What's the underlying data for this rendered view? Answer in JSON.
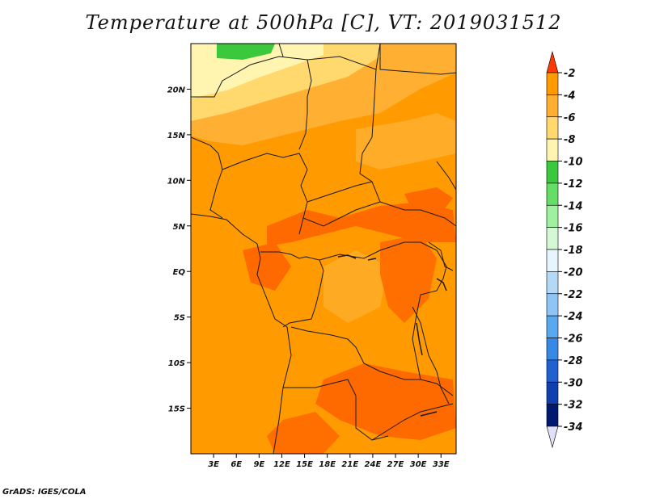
{
  "title": "Temperature at 500hPa [C], VT: 2019031512",
  "credit": "GrADS: IGES/COLA",
  "map": {
    "lon_range": [
      0,
      35
    ],
    "lat_range": [
      -20,
      25
    ],
    "lon_ticks": [
      "3E",
      "6E",
      "9E",
      "12E",
      "15E",
      "18E",
      "21E",
      "24E",
      "27E",
      "30E",
      "33E"
    ],
    "lon_tick_values": [
      3,
      6,
      9,
      12,
      15,
      18,
      21,
      24,
      27,
      30,
      33
    ],
    "lat_ticks": [
      "20N",
      "15N",
      "10N",
      "5N",
      "EQ",
      "5S",
      "10S",
      "15S"
    ],
    "lat_tick_values": [
      20,
      15,
      10,
      5,
      0,
      -5,
      -10,
      -15
    ]
  },
  "colorbar": {
    "labels": [
      "-2",
      "-4",
      "-6",
      "-8",
      "-10",
      "-12",
      "-14",
      "-16",
      "-18",
      "-20",
      "-22",
      "-24",
      "-26",
      "-28",
      "-30",
      "-32",
      "-34"
    ],
    "colors": [
      "#ff6a00",
      "#ff9a00",
      "#ffb032",
      "#ffd96e",
      "#fff5b0",
      "#3cc83c",
      "#66dd66",
      "#9ff09f",
      "#d4f7d4",
      "#e6f5ff",
      "#b3d9f7",
      "#8fc5f5",
      "#5aa8ee",
      "#3a88e6",
      "#2060d0",
      "#1040b0",
      "#001a6e"
    ],
    "top_triangle_color": "#ff3a00",
    "bottom_triangle_color": "#e0e0f8"
  }
}
